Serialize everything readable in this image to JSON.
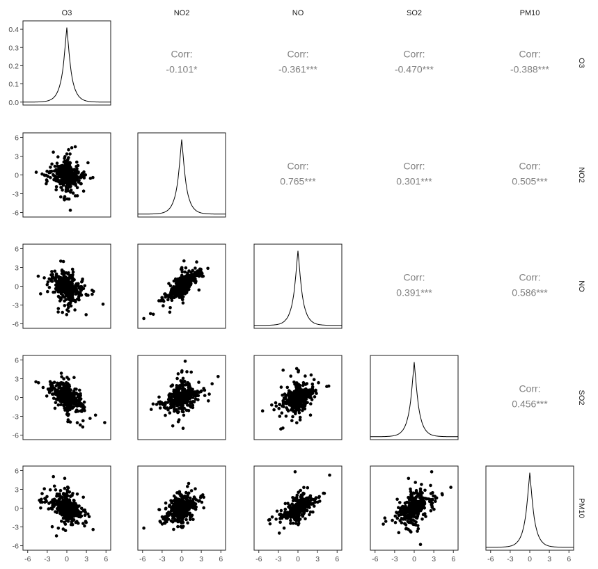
{
  "chart_data": {
    "type": "scatter-matrix",
    "variables": [
      "O3",
      "NO2",
      "NO",
      "SO2",
      "PM10"
    ],
    "axis_range": [
      -6,
      6
    ],
    "axis_ticks": [
      -6,
      -3,
      0,
      3,
      6
    ],
    "axis_tick_labels": [
      "-6",
      "-3",
      "0",
      "3",
      "6"
    ],
    "density_axis_ticks": [
      0.0,
      0.1,
      0.2,
      0.3,
      0.4
    ],
    "density_axis_tick_labels": [
      "0.0",
      "0.1",
      "0.2",
      "0.3",
      "0.4"
    ],
    "density_range": [
      0,
      0.43
    ],
    "correlation_label": "Corr:",
    "correlations": [
      {
        "row": "O3",
        "col": "NO2",
        "text": "-0.101*"
      },
      {
        "row": "O3",
        "col": "NO",
        "text": "-0.361***"
      },
      {
        "row": "O3",
        "col": "SO2",
        "text": "-0.470***"
      },
      {
        "row": "O3",
        "col": "PM10",
        "text": "-0.388***"
      },
      {
        "row": "NO2",
        "col": "NO",
        "text": "0.765***"
      },
      {
        "row": "NO2",
        "col": "SO2",
        "text": "0.301***"
      },
      {
        "row": "NO2",
        "col": "PM10",
        "text": "0.505***"
      },
      {
        "row": "NO",
        "col": "SO2",
        "text": "0.391***"
      },
      {
        "row": "NO",
        "col": "PM10",
        "text": "0.586***"
      },
      {
        "row": "SO2",
        "col": "PM10",
        "text": "0.456***"
      }
    ],
    "scatter_points_per_panel": 420,
    "density_shape": "Laplace-like peaked at 0, peak ~0.41",
    "grid": false
  }
}
